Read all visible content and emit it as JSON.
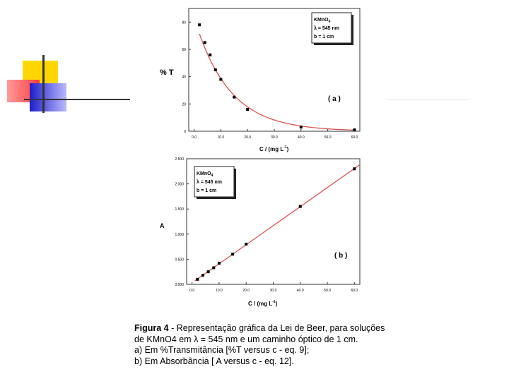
{
  "colors": {
    "curve": "#d9534f",
    "points": "#000000",
    "deco_yellow": "#ffd700",
    "deco_red": "#ff5a5a",
    "deco_blue": "#2a2acf",
    "deco_line": "#333333"
  },
  "chart_data": [
    {
      "type": "scatter",
      "panel_label": "( a )",
      "ylabel": "% T",
      "xlabel": "C / (mg L",
      "xlabel_sup": "-1",
      "xlabel_end": ")",
      "legend": {
        "line1": "KMnO",
        "line1_sub": "4",
        "line2": "λ = 545 nm",
        "line3": "b = 1 cm",
        "position": "top-right"
      },
      "xlim": [
        -2,
        62
      ],
      "ylim": [
        0,
        90
      ],
      "x_ticks": [
        0,
        10,
        20,
        30,
        40,
        50,
        60
      ],
      "x_tick_labels": [
        "0.0",
        "10.0",
        "20.0",
        "30.0",
        "40.0",
        "50.0",
        "60.0"
      ],
      "y_ticks": [
        0,
        20,
        40,
        60,
        80
      ],
      "y_tick_labels": [
        "0",
        "20",
        "40",
        "60",
        "80"
      ],
      "points": {
        "x": [
          2,
          4,
          6,
          8,
          10,
          15,
          20,
          40,
          60
        ],
        "y": [
          78,
          65,
          56,
          45,
          38,
          25,
          16,
          3,
          1
        ]
      },
      "fit": "exponential"
    },
    {
      "type": "scatter",
      "panel_label": "( b )",
      "ylabel": "A",
      "xlabel": "C / (mg L",
      "xlabel_sup": "-1",
      "xlabel_end": ")",
      "legend": {
        "line1": "KMnO",
        "line1_sub": "4",
        "line2": "λ = 545 nm",
        "line3": "b = 1 cm",
        "position": "top-left"
      },
      "xlim": [
        -2,
        62
      ],
      "ylim": [
        0,
        2.5
      ],
      "x_ticks": [
        0,
        10,
        20,
        30,
        40,
        50,
        60
      ],
      "x_tick_labels": [
        "0.0",
        "10.0",
        "20.0",
        "30.0",
        "40.0",
        "50.0",
        "60.0"
      ],
      "y_ticks": [
        0,
        0.5,
        1.0,
        1.5,
        2.0,
        2.5
      ],
      "y_tick_labels": [
        "0.000",
        "0.500",
        "1.000",
        "1.500",
        "2.000",
        "2.500"
      ],
      "points": {
        "x": [
          2,
          4,
          6,
          8,
          10,
          15,
          20,
          40,
          60
        ],
        "y": [
          0.1,
          0.18,
          0.25,
          0.33,
          0.42,
          0.6,
          0.8,
          1.55,
          2.3
        ]
      },
      "fit": "linear"
    }
  ],
  "caption": {
    "bold": "Figura 4",
    "line1_rest": " - Representação gráfica da Lei de Beer, para soluções",
    "line2": "de KMnO4 em λ = 545 nm e um caminho óptico de 1 cm.",
    "line3": "a) Em %Transmitância [%T versus c - eq. 9];",
    "line4": "b) Em Absorbância [ A versus c - eq. 12]."
  }
}
